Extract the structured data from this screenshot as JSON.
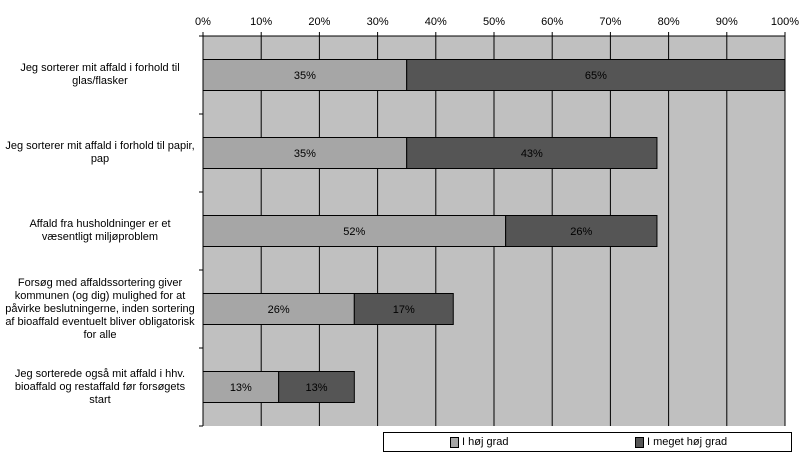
{
  "chart_data": {
    "type": "bar",
    "orientation": "horizontal",
    "stacked": true,
    "categories": [
      "Jeg sorterer mit affald i forhold til glas/flasker",
      "Jeg sorterer mit affald i forhold til papir, pap",
      "Affald fra husholdninger er et væsentligt miljøproblem",
      "Forsøg med affaldssortering giver kommunen (og dig) mulighed for at påvirke beslutningerne, inden sortering af bioaffald eventuelt bliver obligatorisk for alle",
      "Jeg sorterede også mit affald i hhv. bioaffald og restaffald før forsøgets start"
    ],
    "category_lines": [
      [
        "Jeg sorterer mit affald i forhold til",
        "glas/flasker"
      ],
      [
        "Jeg sorterer mit affald i forhold til papir,",
        "pap"
      ],
      [
        "Affald fra husholdninger er et",
        "væsentligt miljøproblem"
      ],
      [
        "Forsøg med affaldssortering giver",
        "kommunen (og dig) mulighed for at",
        "påvirke beslutningerne, inden sortering",
        "af bioaffald eventuelt bliver obligatorisk",
        "for alle"
      ],
      [
        "Jeg sorterede også mit affald i hhv.",
        "bioaffald og restaffald før forsøgets",
        "start"
      ]
    ],
    "series": [
      {
        "name": "I høj grad",
        "values": [
          35,
          35,
          52,
          26,
          13
        ],
        "labels": [
          "35%",
          "35%",
          "52%",
          "26%",
          "13%"
        ],
        "color": "#a6a6a6"
      },
      {
        "name": "I meget høj grad",
        "values": [
          65,
          43,
          26,
          17,
          13
        ],
        "labels": [
          "65%",
          "43%",
          "26%",
          "17%",
          "13%"
        ],
        "color": "#555555"
      }
    ],
    "x_ticks": [
      "0%",
      "10%",
      "20%",
      "30%",
      "40%",
      "50%",
      "60%",
      "70%",
      "80%",
      "90%",
      "100%"
    ],
    "xlim": [
      0,
      100
    ],
    "grid": true,
    "legend_position": "bottom-right",
    "plot_background": "#c0c0c0"
  }
}
